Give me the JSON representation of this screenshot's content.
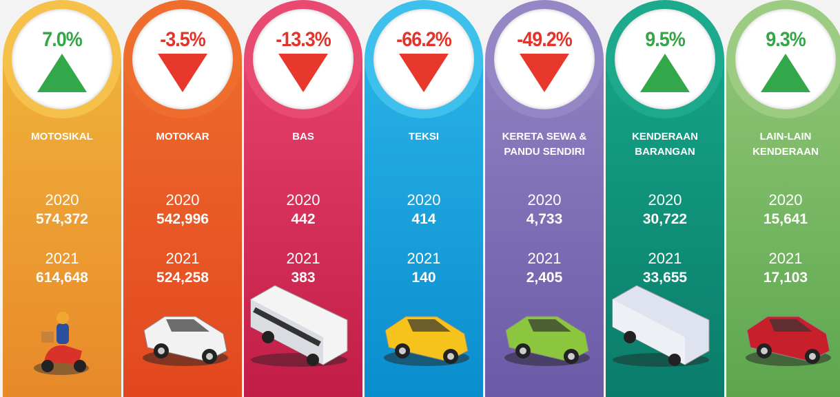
{
  "columns": [
    {
      "name": "MOTOSIKAL",
      "change": "7.0%",
      "years": [
        {
          "year": "2020",
          "count": "574,372"
        },
        {
          "year": "2021",
          "count": "614,648"
        }
      ]
    },
    {
      "name": "MOTOKAR",
      "change": "-3.5%",
      "years": [
        {
          "year": "2020",
          "count": "542,996"
        },
        {
          "year": "2021",
          "count": "524,258"
        }
      ]
    },
    {
      "name": "BAS",
      "change": "-13.3%",
      "years": [
        {
          "year": "2020",
          "count": "442"
        },
        {
          "year": "2021",
          "count": "383"
        }
      ]
    },
    {
      "name": "TEKSI",
      "change": "-66.2%",
      "years": [
        {
          "year": "2020",
          "count": "414"
        },
        {
          "year": "2021",
          "count": "140"
        }
      ]
    },
    {
      "name": "KERETA SEWA &\nPANDU SENDIRI",
      "change": "-49.2%",
      "years": [
        {
          "year": "2020",
          "count": "4,733"
        },
        {
          "year": "2021",
          "count": "2,405"
        }
      ]
    },
    {
      "name": "KENDERAAN\nBARANGAN",
      "change": "9.5%",
      "years": [
        {
          "year": "2020",
          "count": "30,722"
        },
        {
          "year": "2021",
          "count": "33,655"
        }
      ]
    },
    {
      "name": "LAIN-LAIN\nKENDERAAN",
      "change": "9.3%",
      "years": [
        {
          "year": "2020",
          "count": "15,641"
        },
        {
          "year": "2021",
          "count": "17,103"
        }
      ]
    }
  ]
}
